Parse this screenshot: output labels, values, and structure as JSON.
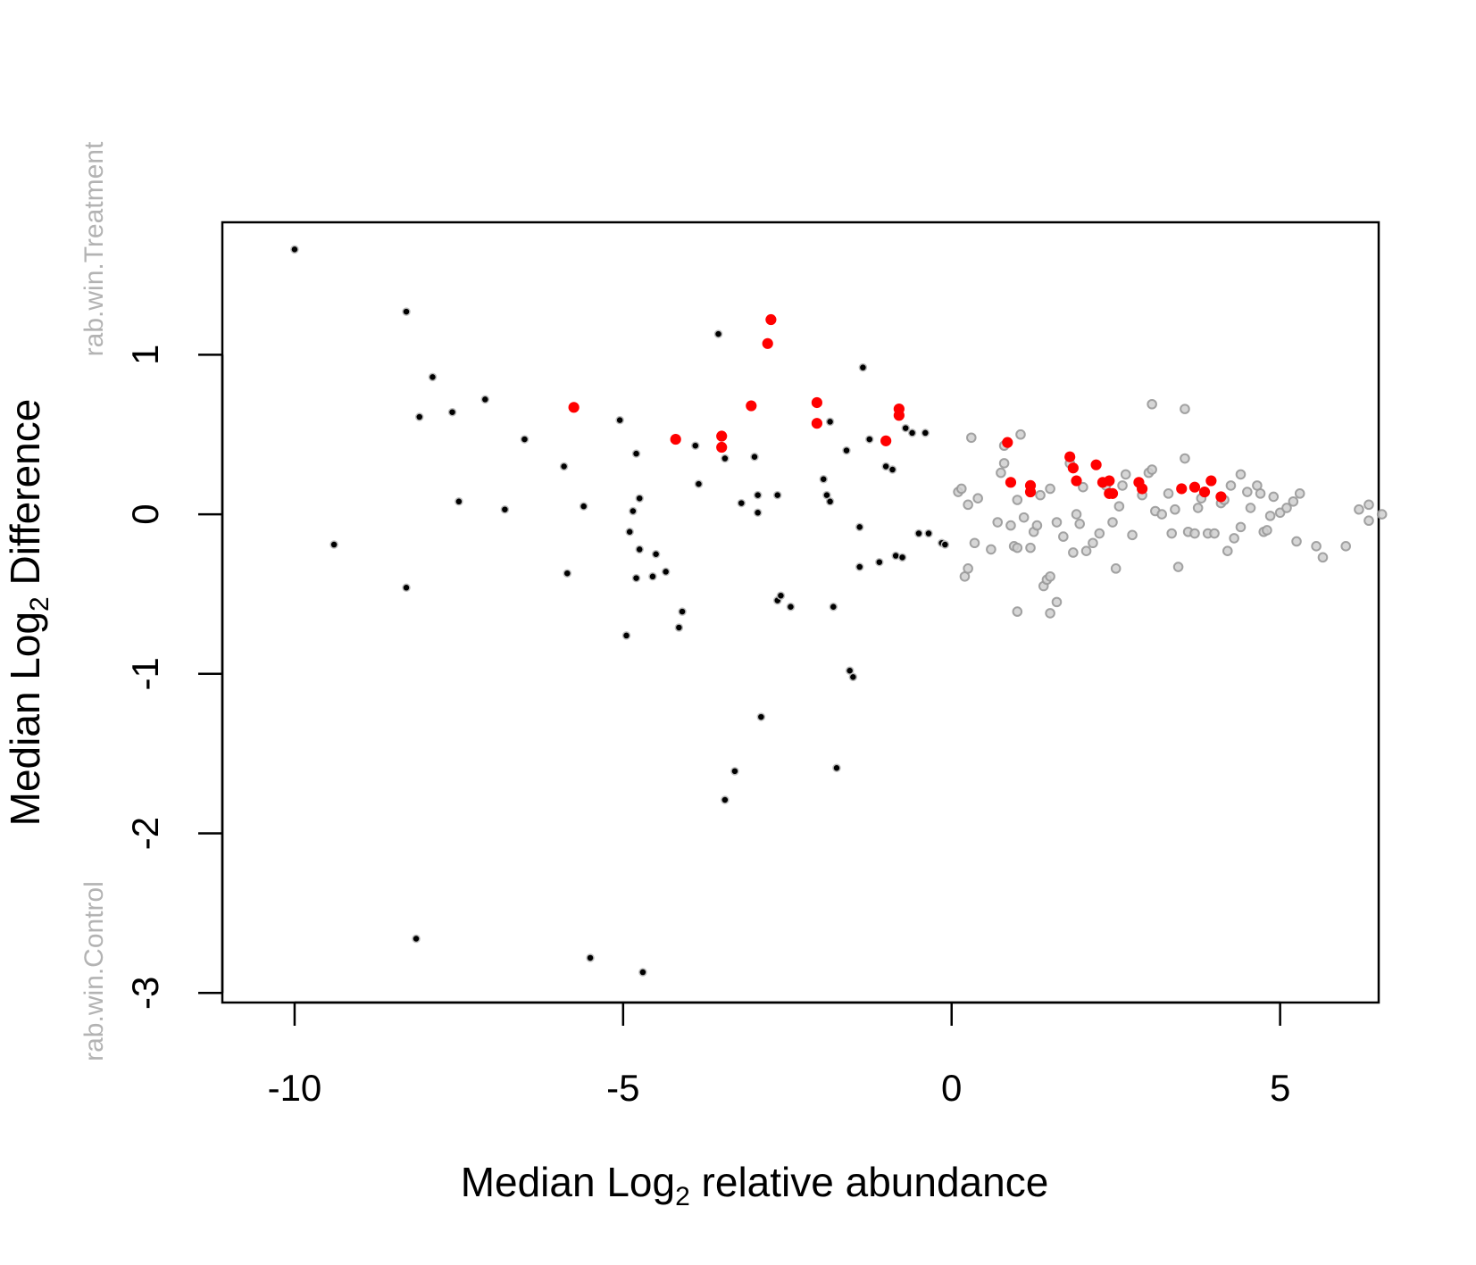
{
  "chart_data": {
    "type": "scatter",
    "xlabel": {
      "prefix": "Median  Log",
      "sub": "2",
      "suffix": "  relative abundance"
    },
    "ylabel": {
      "prefix": "Median  Log",
      "sub": "2",
      "suffix": "  Difference"
    },
    "side_labels": {
      "top": "rab.win.Treatment",
      "bottom": "rab.win.Control"
    },
    "xlim": [
      -11.1,
      6.5
    ],
    "ylim": [
      -3.06,
      1.83
    ],
    "x_ticks": [
      -10,
      -5,
      0,
      5
    ],
    "x_tick_labels": [
      "-10",
      "-5",
      "0",
      "5"
    ],
    "y_ticks": [
      1,
      0,
      -1,
      -2,
      -3
    ],
    "y_tick_labels": [
      "1",
      "0",
      "-1",
      "-2",
      "-3"
    ],
    "grid": false,
    "legend": "none",
    "colors": {
      "rare": "#000000",
      "abundant": "#999999",
      "highlighted": "#ff0000",
      "frame": "#000000"
    },
    "series": [
      {
        "role": "rare",
        "points": [
          [
            -10.0,
            1.66
          ],
          [
            -9.4,
            -0.19
          ],
          [
            -8.3,
            1.27
          ],
          [
            -8.3,
            -0.46
          ],
          [
            -8.1,
            0.61
          ],
          [
            -8.15,
            -2.66
          ],
          [
            -7.9,
            0.86
          ],
          [
            -7.6,
            0.64
          ],
          [
            -7.5,
            0.08
          ],
          [
            -7.1,
            0.72
          ],
          [
            -6.8,
            0.03
          ],
          [
            -6.5,
            0.47
          ],
          [
            -5.9,
            0.3
          ],
          [
            -5.85,
            -0.37
          ],
          [
            -5.6,
            0.05
          ],
          [
            -5.5,
            -2.78
          ],
          [
            -5.05,
            0.59
          ],
          [
            -4.95,
            -0.76
          ],
          [
            -4.9,
            -0.11
          ],
          [
            -4.85,
            0.02
          ],
          [
            -4.8,
            -0.4
          ],
          [
            -4.8,
            0.38
          ],
          [
            -4.75,
            -0.22
          ],
          [
            -4.75,
            0.1
          ],
          [
            -4.7,
            -2.87
          ],
          [
            -4.55,
            -0.39
          ],
          [
            -4.5,
            -0.25
          ],
          [
            -4.35,
            -0.36
          ],
          [
            -4.15,
            -0.71
          ],
          [
            -4.1,
            -0.61
          ],
          [
            -3.9,
            0.43
          ],
          [
            -3.85,
            0.19
          ],
          [
            -3.55,
            1.13
          ],
          [
            -3.45,
            0.35
          ],
          [
            -3.45,
            -1.79
          ],
          [
            -3.3,
            -1.61
          ],
          [
            -3.2,
            0.07
          ],
          [
            -3.0,
            0.36
          ],
          [
            -2.95,
            0.12
          ],
          [
            -2.95,
            0.01
          ],
          [
            -2.9,
            -1.27
          ],
          [
            -2.65,
            0.12
          ],
          [
            -2.65,
            -0.54
          ],
          [
            -2.6,
            -0.51
          ],
          [
            -2.45,
            -0.58
          ],
          [
            -1.95,
            0.22
          ],
          [
            -1.9,
            0.12
          ],
          [
            -1.85,
            0.08
          ],
          [
            -1.85,
            0.58
          ],
          [
            -1.8,
            -0.58
          ],
          [
            -1.75,
            -1.59
          ],
          [
            -1.6,
            0.4
          ],
          [
            -1.55,
            -0.98
          ],
          [
            -1.5,
            -1.02
          ],
          [
            -1.4,
            -0.08
          ],
          [
            -1.4,
            -0.33
          ],
          [
            -1.35,
            0.92
          ],
          [
            -1.25,
            0.47
          ],
          [
            -1.1,
            -0.3
          ],
          [
            -1.0,
            0.3
          ],
          [
            -0.9,
            0.28
          ],
          [
            -0.85,
            -0.26
          ],
          [
            -0.75,
            -0.27
          ],
          [
            -0.7,
            0.54
          ],
          [
            -0.6,
            0.51
          ],
          [
            -0.5,
            -0.12
          ],
          [
            -0.4,
            0.51
          ],
          [
            -0.35,
            -0.12
          ],
          [
            -0.15,
            -0.18
          ],
          [
            -0.1,
            -0.19
          ]
        ]
      },
      {
        "role": "abundant",
        "points": [
          [
            0.1,
            0.14
          ],
          [
            0.15,
            0.16
          ],
          [
            0.2,
            -0.39
          ],
          [
            0.25,
            0.06
          ],
          [
            0.25,
            -0.34
          ],
          [
            0.3,
            0.48
          ],
          [
            0.35,
            -0.18
          ],
          [
            0.4,
            0.1
          ],
          [
            0.6,
            -0.22
          ],
          [
            0.7,
            -0.05
          ],
          [
            0.75,
            0.26
          ],
          [
            0.8,
            0.43
          ],
          [
            0.8,
            0.32
          ],
          [
            0.85,
            0.45
          ],
          [
            0.9,
            -0.07
          ],
          [
            0.95,
            -0.2
          ],
          [
            1.0,
            -0.21
          ],
          [
            1.0,
            0.09
          ],
          [
            1.0,
            -0.61
          ],
          [
            1.05,
            0.5
          ],
          [
            1.1,
            -0.02
          ],
          [
            1.2,
            -0.21
          ],
          [
            1.25,
            -0.11
          ],
          [
            1.3,
            -0.07
          ],
          [
            1.35,
            0.12
          ],
          [
            1.4,
            -0.45
          ],
          [
            1.45,
            -0.41
          ],
          [
            1.5,
            0.16
          ],
          [
            1.5,
            -0.62
          ],
          [
            1.5,
            -0.39
          ],
          [
            1.6,
            -0.05
          ],
          [
            1.6,
            -0.55
          ],
          [
            1.7,
            -0.14
          ],
          [
            1.8,
            0.32
          ],
          [
            1.85,
            -0.24
          ],
          [
            1.9,
            0.0
          ],
          [
            1.95,
            -0.06
          ],
          [
            2.0,
            0.17
          ],
          [
            2.05,
            -0.23
          ],
          [
            2.15,
            -0.18
          ],
          [
            2.25,
            -0.12
          ],
          [
            2.35,
            0.18
          ],
          [
            2.45,
            -0.05
          ],
          [
            2.5,
            -0.34
          ],
          [
            2.55,
            0.05
          ],
          [
            2.6,
            0.18
          ],
          [
            2.65,
            0.25
          ],
          [
            2.75,
            -0.13
          ],
          [
            2.9,
            0.12
          ],
          [
            3.0,
            0.26
          ],
          [
            3.05,
            0.28
          ],
          [
            3.05,
            0.69
          ],
          [
            3.1,
            0.02
          ],
          [
            3.2,
            0.0
          ],
          [
            3.3,
            0.13
          ],
          [
            3.35,
            -0.12
          ],
          [
            3.4,
            0.03
          ],
          [
            3.45,
            -0.33
          ],
          [
            3.55,
            0.35
          ],
          [
            3.55,
            0.66
          ],
          [
            3.6,
            -0.11
          ],
          [
            3.7,
            -0.12
          ],
          [
            3.75,
            0.04
          ],
          [
            3.8,
            0.1
          ],
          [
            3.9,
            -0.12
          ],
          [
            4.0,
            -0.12
          ],
          [
            4.1,
            0.07
          ],
          [
            4.15,
            0.09
          ],
          [
            4.2,
            -0.23
          ],
          [
            4.25,
            0.18
          ],
          [
            4.3,
            -0.15
          ],
          [
            4.4,
            0.25
          ],
          [
            4.4,
            -0.08
          ],
          [
            4.5,
            0.14
          ],
          [
            4.55,
            0.04
          ],
          [
            4.65,
            0.18
          ],
          [
            4.7,
            0.13
          ],
          [
            4.75,
            -0.11
          ],
          [
            4.8,
            -0.1
          ],
          [
            4.85,
            -0.01
          ],
          [
            4.9,
            0.11
          ],
          [
            5.0,
            0.01
          ],
          [
            5.1,
            0.04
          ],
          [
            5.2,
            0.08
          ],
          [
            5.25,
            -0.17
          ],
          [
            5.3,
            0.13
          ],
          [
            5.55,
            -0.2
          ],
          [
            5.65,
            -0.27
          ],
          [
            6.0,
            -0.2
          ],
          [
            6.2,
            0.03
          ],
          [
            6.35,
            0.06
          ],
          [
            6.35,
            -0.04
          ],
          [
            6.55,
            0.0
          ]
        ]
      },
      {
        "role": "highlighted",
        "points": [
          [
            -5.75,
            0.67
          ],
          [
            -4.2,
            0.47
          ],
          [
            -3.5,
            0.49
          ],
          [
            -3.5,
            0.42
          ],
          [
            -3.05,
            0.68
          ],
          [
            -2.75,
            1.22
          ],
          [
            -2.8,
            1.07
          ],
          [
            -2.05,
            0.7
          ],
          [
            -2.05,
            0.57
          ],
          [
            -1.0,
            0.46
          ],
          [
            -0.8,
            0.66
          ],
          [
            -0.8,
            0.62
          ],
          [
            0.85,
            0.45
          ],
          [
            0.9,
            0.2
          ],
          [
            1.2,
            0.18
          ],
          [
            1.2,
            0.14
          ],
          [
            1.8,
            0.36
          ],
          [
            1.85,
            0.29
          ],
          [
            1.9,
            0.21
          ],
          [
            2.2,
            0.31
          ],
          [
            2.3,
            0.2
          ],
          [
            2.4,
            0.13
          ],
          [
            2.4,
            0.21
          ],
          [
            2.45,
            0.13
          ],
          [
            2.85,
            0.2
          ],
          [
            2.9,
            0.16
          ],
          [
            3.5,
            0.16
          ],
          [
            3.7,
            0.17
          ],
          [
            3.85,
            0.14
          ],
          [
            3.95,
            0.21
          ],
          [
            4.1,
            0.11
          ]
        ]
      }
    ]
  }
}
